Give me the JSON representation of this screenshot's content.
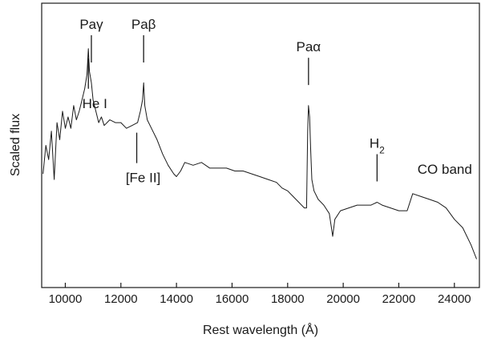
{
  "chart_data": {
    "type": "line",
    "xlabel": "Rest wavelength (Å)",
    "ylabel": "Scaled flux",
    "xlim": [
      9150,
      24900
    ],
    "ylim": [
      0,
      1
    ],
    "x_ticks": [
      10000,
      12000,
      14000,
      16000,
      18000,
      20000,
      22000,
      24000
    ],
    "x_tick_labels": [
      "10000",
      "12000",
      "14000",
      "16000",
      "18000",
      "20000",
      "22000",
      "24000"
    ],
    "grid": false,
    "legend": "none",
    "colors": {
      "line": "#1a1a1a",
      "axes": "#1a1a1a"
    },
    "series": [
      {
        "points": [
          [
            9200,
            0.4
          ],
          [
            9300,
            0.5
          ],
          [
            9400,
            0.45
          ],
          [
            9500,
            0.55
          ],
          [
            9600,
            0.38
          ],
          [
            9700,
            0.58
          ],
          [
            9800,
            0.52
          ],
          [
            9900,
            0.62
          ],
          [
            10000,
            0.56
          ],
          [
            10100,
            0.6
          ],
          [
            10200,
            0.56
          ],
          [
            10300,
            0.64
          ],
          [
            10400,
            0.59
          ],
          [
            10500,
            0.62
          ],
          [
            10600,
            0.66
          ],
          [
            10700,
            0.7
          ],
          [
            10780,
            0.75
          ],
          [
            10830,
            0.84
          ],
          [
            10870,
            0.76
          ],
          [
            10938,
            0.72
          ],
          [
            11000,
            0.66
          ],
          [
            11100,
            0.62
          ],
          [
            11200,
            0.58
          ],
          [
            11300,
            0.6
          ],
          [
            11400,
            0.57
          ],
          [
            11600,
            0.59
          ],
          [
            11800,
            0.58
          ],
          [
            12000,
            0.58
          ],
          [
            12200,
            0.56
          ],
          [
            12400,
            0.57
          ],
          [
            12600,
            0.58
          ],
          [
            12700,
            0.62
          ],
          [
            12780,
            0.66
          ],
          [
            12818,
            0.72
          ],
          [
            12860,
            0.64
          ],
          [
            12950,
            0.59
          ],
          [
            13100,
            0.56
          ],
          [
            13300,
            0.52
          ],
          [
            13500,
            0.47
          ],
          [
            13700,
            0.43
          ],
          [
            13900,
            0.4
          ],
          [
            14000,
            0.39
          ],
          [
            14150,
            0.41
          ],
          [
            14300,
            0.44
          ],
          [
            14600,
            0.43
          ],
          [
            14900,
            0.44
          ],
          [
            15200,
            0.42
          ],
          [
            15500,
            0.42
          ],
          [
            15800,
            0.42
          ],
          [
            16100,
            0.41
          ],
          [
            16400,
            0.41
          ],
          [
            16700,
            0.4
          ],
          [
            17000,
            0.39
          ],
          [
            17300,
            0.38
          ],
          [
            17600,
            0.37
          ],
          [
            17800,
            0.35
          ],
          [
            18000,
            0.34
          ],
          [
            18200,
            0.32
          ],
          [
            18400,
            0.3
          ],
          [
            18600,
            0.28
          ],
          [
            18680,
            0.28
          ],
          [
            18720,
            0.55
          ],
          [
            18750,
            0.64
          ],
          [
            18790,
            0.6
          ],
          [
            18830,
            0.48
          ],
          [
            18870,
            0.38
          ],
          [
            18950,
            0.34
          ],
          [
            19100,
            0.31
          ],
          [
            19300,
            0.29
          ],
          [
            19500,
            0.26
          ],
          [
            19620,
            0.18
          ],
          [
            19700,
            0.24
          ],
          [
            19900,
            0.27
          ],
          [
            20200,
            0.28
          ],
          [
            20500,
            0.29
          ],
          [
            20800,
            0.29
          ],
          [
            21000,
            0.29
          ],
          [
            21218,
            0.3
          ],
          [
            21400,
            0.29
          ],
          [
            21700,
            0.28
          ],
          [
            22000,
            0.27
          ],
          [
            22300,
            0.27
          ],
          [
            22500,
            0.33
          ],
          [
            22800,
            0.32
          ],
          [
            23100,
            0.31
          ],
          [
            23400,
            0.3
          ],
          [
            23700,
            0.28
          ],
          [
            24000,
            0.24
          ],
          [
            24300,
            0.21
          ],
          [
            24600,
            0.15
          ],
          [
            24800,
            0.1
          ]
        ]
      }
    ],
    "annotations": [
      {
        "label": "Paγ",
        "x": 10938,
        "side": "above"
      },
      {
        "label": "Paβ",
        "x": 12818,
        "side": "above"
      },
      {
        "label": "Paα",
        "x": 18751,
        "side": "above"
      },
      {
        "label": "H",
        "sub": "2",
        "x": 21218,
        "side": "above"
      },
      {
        "label": "He I",
        "x": 10830,
        "side": "below"
      },
      {
        "label": "[Fe II]",
        "x": 12570,
        "side": "below"
      }
    ],
    "text_labels": [
      {
        "label": "CO band",
        "x": 22500
      }
    ]
  }
}
